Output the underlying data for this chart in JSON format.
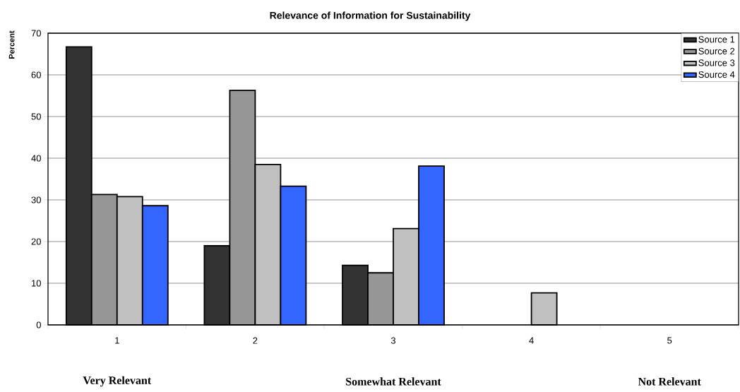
{
  "chart_data": {
    "type": "bar",
    "title": "Relevance of Information for Sustainability",
    "ylabel": "Percent",
    "categories": [
      "1",
      "2",
      "3",
      "4",
      "5"
    ],
    "series": [
      {
        "name": "Source 1",
        "color": "#333333",
        "values": [
          66.7,
          19.0,
          14.3,
          null,
          null
        ]
      },
      {
        "name": "Source 2",
        "color": "#969696",
        "values": [
          31.3,
          56.3,
          12.5,
          null,
          null
        ]
      },
      {
        "name": "Source 3",
        "color": "#c0c0c0",
        "values": [
          30.8,
          38.5,
          23.1,
          7.7,
          null
        ]
      },
      {
        "name": "Source 4",
        "color": "#3366ff",
        "values": [
          28.6,
          33.3,
          38.1,
          null,
          null
        ]
      }
    ],
    "ylim": [
      0,
      70
    ],
    "yticks": [
      0,
      10,
      20,
      30,
      40,
      50,
      60,
      70
    ],
    "grid": "y",
    "legend": "top right",
    "annotations": [
      "Very Relevant",
      "Somewhat Relevant",
      "Not Relevant"
    ]
  }
}
